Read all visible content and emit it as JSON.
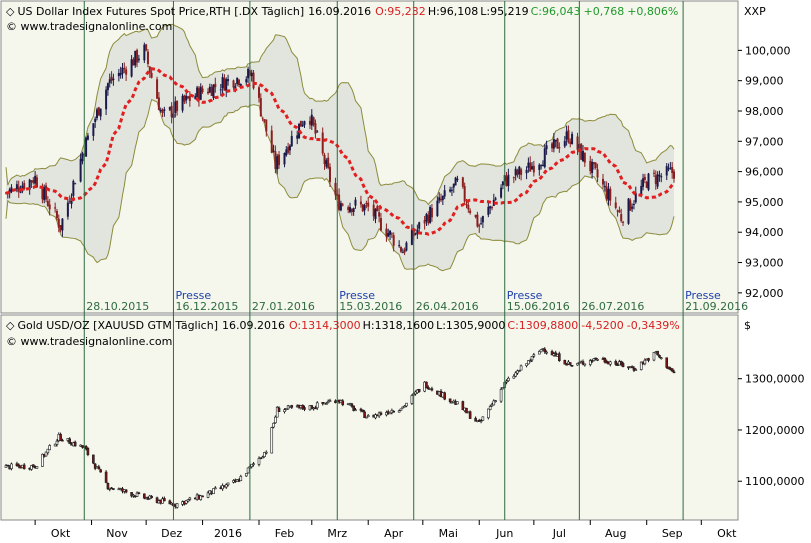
{
  "chart_data": [
    {
      "type": "candlestick",
      "title": "US Dollar Index Futures Spot Price,RTH [.DX  Täglich]",
      "date": "16.09.2016",
      "ohlc_text": {
        "open": "O:95,232",
        "high": "H:96,108",
        "low": "L:95,219",
        "close": "C:96,043",
        "change": "+0,768",
        "change_pct": "+0,806%"
      },
      "website": "© www.tradesignalonline.com",
      "unit": "XXP",
      "ylim": [
        91.5,
        101.2
      ],
      "y_ticks": [
        "100,000",
        "99,000",
        "98,000",
        "97,000",
        "96,000",
        "95,000",
        "94,000",
        "93,000",
        "92,000"
      ],
      "y_tick_values": [
        100,
        99,
        98,
        97,
        96,
        95,
        94,
        93,
        92
      ],
      "indicators": [
        "Bollinger Bands",
        "Moving Average"
      ],
      "event_dates": [
        "28.10.2015",
        "16.12.2015",
        "27.01.2016",
        "15.03.2016",
        "26.04.2016",
        "15.06.2016",
        "26.07.2016",
        "21.09.2016"
      ],
      "event_labels": [
        "",
        "Presse",
        "",
        "Presse",
        "",
        "Presse",
        "",
        "Presse"
      ],
      "series_close_approx": [
        {
          "x": "2015-09-15",
          "y": 95.3
        },
        {
          "x": "2015-10-01",
          "y": 95.8
        },
        {
          "x": "2015-10-15",
          "y": 94.2
        },
        {
          "x": "2015-10-28",
          "y": 96.8
        },
        {
          "x": "2015-11-10",
          "y": 98.9
        },
        {
          "x": "2015-11-30",
          "y": 100.0
        },
        {
          "x": "2015-12-10",
          "y": 97.8
        },
        {
          "x": "2015-12-30",
          "y": 98.6
        },
        {
          "x": "2016-01-15",
          "y": 99.0
        },
        {
          "x": "2016-01-28",
          "y": 99.2
        },
        {
          "x": "2016-02-10",
          "y": 96.2
        },
        {
          "x": "2016-02-28",
          "y": 98.0
        },
        {
          "x": "2016-03-15",
          "y": 95.0
        },
        {
          "x": "2016-04-01",
          "y": 94.8
        },
        {
          "x": "2016-04-20",
          "y": 93.4
        },
        {
          "x": "2016-05-03",
          "y": 94.5
        },
        {
          "x": "2016-05-20",
          "y": 95.6
        },
        {
          "x": "2016-06-01",
          "y": 94.2
        },
        {
          "x": "2016-06-15",
          "y": 95.7
        },
        {
          "x": "2016-06-28",
          "y": 96.1
        },
        {
          "x": "2016-07-20",
          "y": 97.2
        },
        {
          "x": "2016-08-05",
          "y": 95.8
        },
        {
          "x": "2016-08-18",
          "y": 94.5
        },
        {
          "x": "2016-09-01",
          "y": 95.7
        },
        {
          "x": "2016-09-16",
          "y": 96.0
        }
      ]
    },
    {
      "type": "candlestick",
      "title": "Gold USD/OZ [XAUUSD GTM  Täglich]",
      "date": "16.09.2016",
      "ohlc_text": {
        "open": "O:1314,3000",
        "high": "H:1318,1600",
        "low": "L:1305,9000",
        "close": "C:1309,8800",
        "change": "-4,5200",
        "change_pct": "-0,3439%"
      },
      "website": "© www.tradesignalonline.com",
      "unit": "$",
      "ylim": [
        1040,
        1395
      ],
      "y_ticks": [
        "1300,0000",
        "1200,0000",
        "1100,0000"
      ],
      "y_tick_values": [
        1300,
        1200,
        1100
      ],
      "series_close_approx": [
        {
          "x": "2015-09-15",
          "y": 1128
        },
        {
          "x": "2015-10-01",
          "y": 1130
        },
        {
          "x": "2015-10-14",
          "y": 1186
        },
        {
          "x": "2015-10-28",
          "y": 1165
        },
        {
          "x": "2015-11-10",
          "y": 1090
        },
        {
          "x": "2015-11-30",
          "y": 1068
        },
        {
          "x": "2015-12-17",
          "y": 1055
        },
        {
          "x": "2015-12-31",
          "y": 1070
        },
        {
          "x": "2016-01-20",
          "y": 1100
        },
        {
          "x": "2016-02-05",
          "y": 1160
        },
        {
          "x": "2016-02-11",
          "y": 1240
        },
        {
          "x": "2016-03-01",
          "y": 1245
        },
        {
          "x": "2016-03-15",
          "y": 1260
        },
        {
          "x": "2016-04-01",
          "y": 1225
        },
        {
          "x": "2016-04-20",
          "y": 1245
        },
        {
          "x": "2016-05-02",
          "y": 1290
        },
        {
          "x": "2016-05-20",
          "y": 1250
        },
        {
          "x": "2016-06-01",
          "y": 1212
        },
        {
          "x": "2016-06-15",
          "y": 1290
        },
        {
          "x": "2016-06-24",
          "y": 1320
        },
        {
          "x": "2016-07-06",
          "y": 1360
        },
        {
          "x": "2016-07-22",
          "y": 1325
        },
        {
          "x": "2016-08-05",
          "y": 1340
        },
        {
          "x": "2016-08-25",
          "y": 1320
        },
        {
          "x": "2016-09-06",
          "y": 1350
        },
        {
          "x": "2016-09-16",
          "y": 1310
        }
      ]
    }
  ],
  "x_axis": {
    "labels": [
      "Okt",
      "Nov",
      "Dez",
      "2016",
      "Feb",
      "Mrz",
      "Apr",
      "Mai",
      "Jun",
      "Jul",
      "Aug",
      "Sep",
      "Okt"
    ]
  },
  "colors": {
    "background": "#f5f7ed",
    "band_fill": "#e2e4de",
    "band_line": "#8d8c3c",
    "moving_average": "#e02020",
    "candle": "#1a1a4a",
    "candle_down": "#8a1f1f",
    "gold_candle": "#1a1a1a",
    "gold_down": "#7a1515",
    "event_line": "#2e6b3f",
    "event_date_text": "#2e6b3f",
    "presse_text": "#1e3fa8",
    "open_red": "#d62020",
    "close_green": "#1f9a2a",
    "grid_vertical": "#2e6b3f"
  }
}
